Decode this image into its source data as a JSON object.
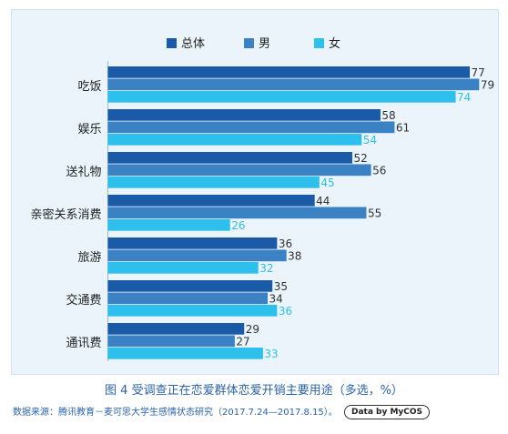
{
  "chart_data": {
    "type": "bar",
    "orientation": "horizontal",
    "categories": [
      "吃饭",
      "娱乐",
      "送礼物",
      "亲密关系消费",
      "旅游",
      "交通费",
      "通讯费"
    ],
    "series": [
      {
        "name": "总体",
        "color": "#1a5aa6",
        "values": [
          77,
          58,
          52,
          44,
          36,
          35,
          29
        ]
      },
      {
        "name": "男",
        "color": "#3a82c4",
        "values": [
          79,
          61,
          56,
          55,
          38,
          34,
          27
        ]
      },
      {
        "name": "女",
        "color": "#2ec0ec",
        "values": [
          74,
          54,
          45,
          26,
          32,
          36,
          33
        ]
      }
    ],
    "label_colors": [
      "#333333",
      "#333333",
      "#2ec0ec"
    ],
    "legend_position": "top-center",
    "xlim": [
      0,
      80
    ],
    "grid": false
  },
  "caption": "图 4  受调查正在恋爱群体恋爱开销主要用途（多选，%）",
  "source": "数据来源：腾讯教育－麦可思大学生感情状态研究（2017.7.24—2017.8.15）。",
  "badge": "Data by MyCOS"
}
